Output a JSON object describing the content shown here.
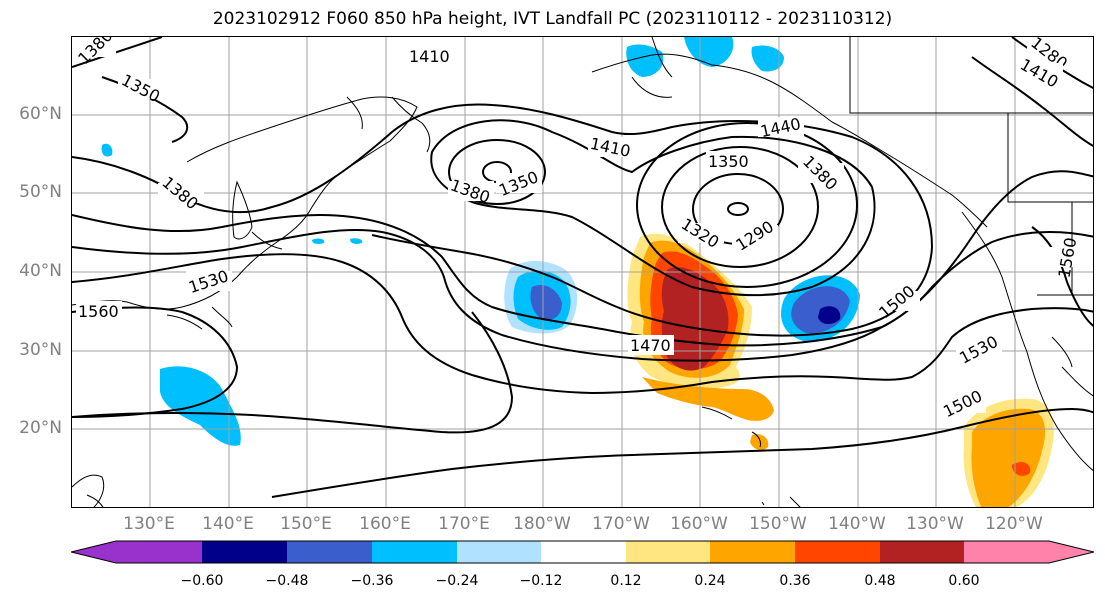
{
  "title": "2023102912 F060 850 hPa height, IVT Landfall PC (2023110112 - 2023110312)",
  "latitude_labels": [
    "60°N",
    "50°N",
    "40°N",
    "30°N",
    "20°N"
  ],
  "longitude_labels": [
    "130°E",
    "140°E",
    "150°E",
    "160°E",
    "170°E",
    "180°W",
    "170°W",
    "160°W",
    "150°W",
    "140°W",
    "130°W",
    "120°W"
  ],
  "contour_labels": [
    "1380",
    "1410",
    "1280",
    "1410",
    "1350",
    "1380",
    "1440",
    "1410",
    "1350",
    "1380",
    "1350",
    "1380",
    "1320",
    "1290",
    "1530",
    "1500",
    "1560",
    "1470",
    "1560",
    "1530",
    "1500"
  ],
  "colorbar": {
    "ticks": [
      "−0.60",
      "−0.48",
      "−0.36",
      "−0.24",
      "−0.12",
      "0.12",
      "0.24",
      "0.36",
      "0.48",
      "0.60"
    ],
    "colors": [
      "#9932cc",
      "#00008b",
      "#3a5fcd",
      "#00bfff",
      "#b0e2ff",
      "#ffffff",
      "#ffe680",
      "#ffa500",
      "#ff4500",
      "#b22222",
      "#ff82ab"
    ]
  }
}
